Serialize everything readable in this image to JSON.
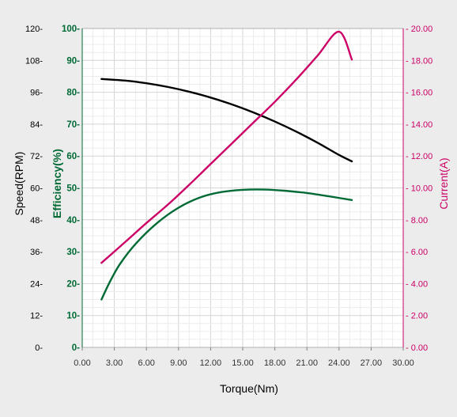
{
  "chart_data": {
    "type": "line",
    "title": "",
    "xlabel": "Torque(Nm)",
    "xlim": [
      0,
      30
    ],
    "x_ticks": [
      "0.00",
      "3.00",
      "6.00",
      "9.00",
      "12.00",
      "15.00",
      "18.00",
      "21.00",
      "24.00",
      "27.00",
      "30.00"
    ],
    "grid": true,
    "axes": {
      "speed": {
        "label": "Speed(RPM)",
        "color": "#000000",
        "ylim": [
          0,
          120
        ],
        "ticks": [
          "0-",
          "12-",
          "24-",
          "36-",
          "48-",
          "60-",
          "72-",
          "84-",
          "96-",
          "108-",
          "120-"
        ]
      },
      "efficiency": {
        "label": "Efficiency(%)",
        "color": "#006a35",
        "ylim": [
          0,
          100
        ],
        "ticks": [
          "0-",
          "10-",
          "20-",
          "30-",
          "40-",
          "50-",
          "60-",
          "70-",
          "80-",
          "90-",
          "100-"
        ]
      },
      "current": {
        "label": "Current(A)",
        "color": "#cc0066",
        "ylim": [
          0,
          20
        ],
        "ticks": [
          "- 0.00",
          "- 2.00",
          "- 4.00",
          "- 6.00",
          "- 8.00",
          "- 10.00",
          "- 12.00",
          "- 14.00",
          "- 16.00",
          "- 18.00",
          "- 20.00"
        ]
      }
    },
    "series": [
      {
        "axis": "speed",
        "color": "#000000",
        "points": [
          [
            1.8,
            101
          ],
          [
            4,
            100.4
          ],
          [
            6,
            99.4
          ],
          [
            8,
            98
          ],
          [
            10,
            96.2
          ],
          [
            12,
            94
          ],
          [
            14,
            91.4
          ],
          [
            16,
            88.4
          ],
          [
            18,
            85
          ],
          [
            20,
            81.2
          ],
          [
            22,
            77
          ],
          [
            24,
            72.4
          ],
          [
            25.2,
            70
          ]
        ]
      },
      {
        "axis": "efficiency",
        "color": "#006a35",
        "points": [
          [
            1.8,
            15
          ],
          [
            2.5,
            20
          ],
          [
            3.5,
            26
          ],
          [
            5,
            32.5
          ],
          [
            7,
            39
          ],
          [
            9,
            43.8
          ],
          [
            11,
            47
          ],
          [
            13,
            48.7
          ],
          [
            15,
            49.4
          ],
          [
            17,
            49.5
          ],
          [
            19,
            49.1
          ],
          [
            21,
            48.4
          ],
          [
            23,
            47.4
          ],
          [
            25.2,
            46.2
          ]
        ]
      },
      {
        "axis": "current",
        "color": "#cc0066",
        "points": [
          [
            1.8,
            5.3
          ],
          [
            4,
            6.6
          ],
          [
            6,
            7.8
          ],
          [
            8,
            8.95
          ],
          [
            10,
            10.2
          ],
          [
            12,
            11.5
          ],
          [
            14,
            12.8
          ],
          [
            16,
            14.1
          ],
          [
            18,
            15.4
          ],
          [
            20,
            16.8
          ],
          [
            22,
            18.3
          ],
          [
            24,
            19.8
          ],
          [
            25.2,
            18.05
          ]
        ]
      }
    ]
  }
}
